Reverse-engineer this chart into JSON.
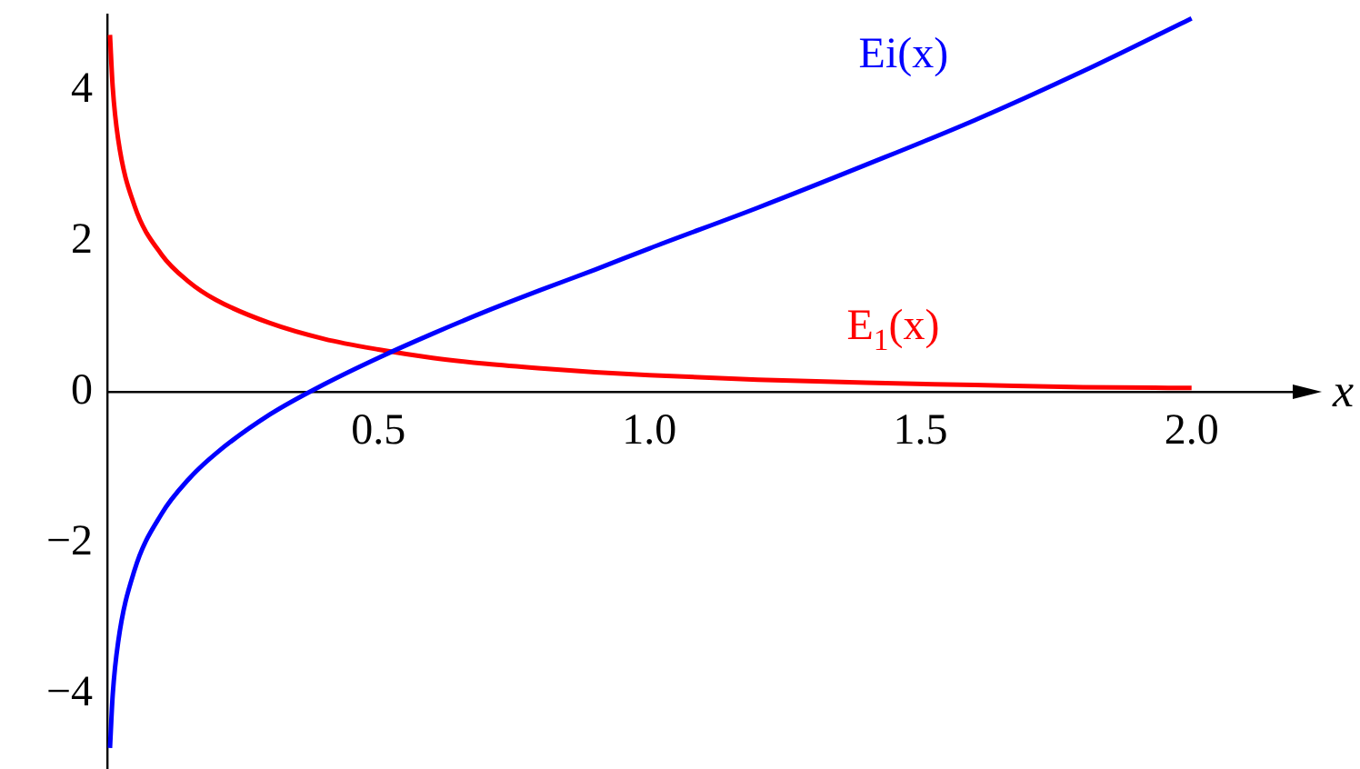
{
  "chart_data": {
    "type": "line",
    "xlabel": "x",
    "xlim": [
      0,
      2.2
    ],
    "ylim": [
      -5,
      5
    ],
    "xticks": [
      {
        "value": 0.5,
        "label": "0.5"
      },
      {
        "value": 1.0,
        "label": "1.0"
      },
      {
        "value": 1.5,
        "label": "1.5"
      },
      {
        "value": 2.0,
        "label": "2.0"
      }
    ],
    "yticks": [
      {
        "value": -4,
        "label": "−4"
      },
      {
        "value": -2,
        "label": "−2"
      },
      0,
      2,
      4
    ],
    "grid": false,
    "legend": false,
    "marker": "none",
    "line_style": "solid",
    "series": [
      {
        "name": "Ei(x)",
        "color": "#0000ff",
        "x": [
          0.005,
          0.01,
          0.02,
          0.05,
          0.1,
          0.15,
          0.2,
          0.3,
          0.4,
          0.5,
          0.6,
          0.7,
          0.8,
          0.9,
          1.0,
          1.2,
          1.4,
          1.6,
          1.8,
          2.0
        ],
        "values": [
          -4.72,
          -4.02,
          -3.32,
          -2.37,
          -1.62,
          -1.16,
          -0.82,
          -0.3,
          0.1,
          0.45,
          0.77,
          1.07,
          1.35,
          1.62,
          1.9,
          2.44,
          3.01,
          3.6,
          4.25,
          4.95
        ]
      },
      {
        "name": "E$_{1}$(x)",
        "color": "#ff0000",
        "x": [
          0.005,
          0.01,
          0.02,
          0.05,
          0.1,
          0.15,
          0.2,
          0.3,
          0.4,
          0.5,
          0.6,
          0.7,
          0.8,
          0.9,
          1.0,
          1.2,
          1.4,
          1.6,
          1.8,
          2.0
        ],
        "values": [
          4.73,
          4.04,
          3.35,
          2.47,
          1.82,
          1.46,
          1.22,
          0.91,
          0.7,
          0.56,
          0.45,
          0.37,
          0.31,
          0.26,
          0.22,
          0.16,
          0.12,
          0.09,
          0.06,
          0.05
        ]
      }
    ]
  }
}
